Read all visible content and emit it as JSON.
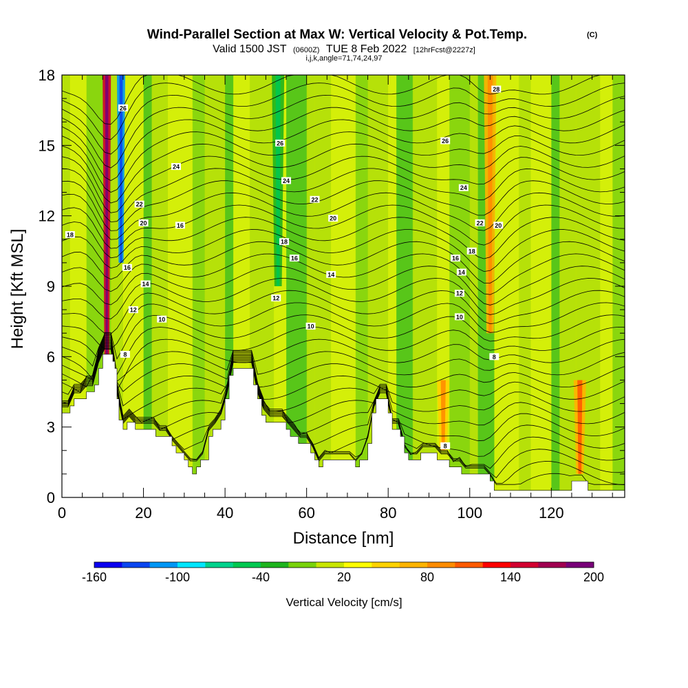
{
  "chart_data": {
    "type": "heatmap",
    "title": "Wind-Parallel Section at Max W: Vertical Velocity & Pot.Temp.",
    "title_mark": "(C)",
    "subtitle": {
      "valid": "Valid 1500 JST",
      "utc": "(0600Z)",
      "date": "TUE 8 Feb 2022",
      "forecast": "[12hrFcst@2227z]"
    },
    "indices": "i,j,k,angle=71,74,24,97",
    "xlabel": "Distance [nm]",
    "ylabel": "Height [Kft MSL]",
    "xlim": [
      0,
      138
    ],
    "ylim": [
      0,
      18
    ],
    "x_ticks": [
      0,
      20,
      40,
      60,
      80,
      100,
      120
    ],
    "y_ticks": [
      0,
      3,
      6,
      9,
      12,
      15,
      18
    ],
    "colorbar": {
      "label": "Vertical Velocity [cm/s]",
      "tick_labels": [
        "-160",
        "-100",
        "-40",
        "20",
        "80",
        "140",
        "200"
      ],
      "colors": [
        "#0a00f0",
        "#0a46f0",
        "#0096f5",
        "#00e6ff",
        "#00d28c",
        "#00c850",
        "#1eb41e",
        "#78d20a",
        "#c8e600",
        "#ffff00",
        "#ffd200",
        "#ffb400",
        "#ff8c00",
        "#ff5a00",
        "#ff0000",
        "#d20030",
        "#a00050",
        "#780078"
      ]
    },
    "vertical_velocity_features": [
      {
        "x": 11,
        "z_min": 6,
        "z_max": 18,
        "w": 150
      },
      {
        "x": 14.5,
        "z_min": 10,
        "z_max": 18,
        "w": -110
      },
      {
        "x": 105,
        "z_min": 7,
        "z_max": 18,
        "w": 60
      },
      {
        "x": 53,
        "z_min": 9,
        "z_max": 18,
        "w": -30
      },
      {
        "x": 127,
        "z_min": 1,
        "z_max": 5,
        "w": 70
      },
      {
        "x": 93.5,
        "z_min": 2,
        "z_max": 5,
        "w": 50
      }
    ],
    "terrain": [
      [
        0,
        3.6
      ],
      [
        1,
        3.6
      ],
      [
        2,
        3.9
      ],
      [
        3,
        4.2
      ],
      [
        5,
        4.2
      ],
      [
        6,
        4.5
      ],
      [
        8,
        4.8
      ],
      [
        9,
        5.5
      ],
      [
        10,
        6.1
      ],
      [
        12,
        6.1
      ],
      [
        12.5,
        5.8
      ],
      [
        13,
        5.5
      ],
      [
        13.5,
        4.2
      ],
      [
        14,
        3.3
      ],
      [
        15,
        2.9
      ],
      [
        16,
        3.2
      ],
      [
        17,
        3.2
      ],
      [
        18,
        2.9
      ],
      [
        22,
        2.9
      ],
      [
        23,
        2.6
      ],
      [
        26,
        2.6
      ],
      [
        27,
        2.2
      ],
      [
        28,
        1.9
      ],
      [
        30,
        1.6
      ],
      [
        31,
        1.3
      ],
      [
        32,
        1.0
      ],
      [
        33,
        1.3
      ],
      [
        34,
        1.6
      ],
      [
        36,
        2.6
      ],
      [
        37,
        2.9
      ],
      [
        39,
        3.3
      ],
      [
        40,
        4.2
      ],
      [
        41,
        5.2
      ],
      [
        42,
        5.5
      ],
      [
        46,
        5.5
      ],
      [
        47,
        4.8
      ],
      [
        48,
        4.2
      ],
      [
        49,
        3.5
      ],
      [
        50,
        3.2
      ],
      [
        51,
        3.2
      ],
      [
        54,
        3.2
      ],
      [
        55,
        2.9
      ],
      [
        56,
        2.6
      ],
      [
        58,
        2.3
      ],
      [
        59,
        2.3
      ],
      [
        61,
        1.9
      ],
      [
        62,
        1.6
      ],
      [
        63,
        1.3
      ],
      [
        64,
        1.6
      ],
      [
        65,
        1.6
      ],
      [
        71,
        1.6
      ],
      [
        72,
        1.3
      ],
      [
        73,
        1.6
      ],
      [
        75,
        2.3
      ],
      [
        76,
        3.6
      ],
      [
        77,
        4.2
      ],
      [
        79,
        4.2
      ],
      [
        80,
        3.6
      ],
      [
        81,
        2.9
      ],
      [
        82,
        2.9
      ],
      [
        83,
        2.6
      ],
      [
        84,
        1.9
      ],
      [
        85,
        1.6
      ],
      [
        87,
        1.6
      ],
      [
        88,
        1.9
      ],
      [
        91,
        1.9
      ],
      [
        92,
        1.6
      ],
      [
        94,
        1.6
      ],
      [
        95,
        1.3
      ],
      [
        97,
        1.3
      ],
      [
        98,
        1.0
      ],
      [
        104,
        1.0
      ],
      [
        105,
        0.7
      ],
      [
        106,
        0.3
      ],
      [
        124,
        0.3
      ],
      [
        125,
        0.7
      ],
      [
        128,
        0.7
      ],
      [
        129,
        0.3
      ],
      [
        138,
        0.3
      ]
    ],
    "isentrope_labels": [
      {
        "text": "26",
        "x": 15,
        "z": 16.6
      },
      {
        "text": "24",
        "x": 28,
        "z": 14.1
      },
      {
        "text": "22",
        "x": 19,
        "z": 12.5
      },
      {
        "text": "20",
        "x": 20,
        "z": 11.7
      },
      {
        "text": "16",
        "x": 29,
        "z": 11.6
      },
      {
        "text": "18",
        "x": 2,
        "z": 11.2
      },
      {
        "text": "16",
        "x": 16,
        "z": 9.8
      },
      {
        "text": "14",
        "x": 20.5,
        "z": 9.1
      },
      {
        "text": "12",
        "x": 17.5,
        "z": 8.0
      },
      {
        "text": "10",
        "x": 24.5,
        "z": 7.6
      },
      {
        "text": "8",
        "x": 15.5,
        "z": 6.1
      },
      {
        "text": "26",
        "x": 53.5,
        "z": 15.1
      },
      {
        "text": "24",
        "x": 55,
        "z": 13.5
      },
      {
        "text": "22",
        "x": 62,
        "z": 12.7
      },
      {
        "text": "20",
        "x": 66.5,
        "z": 11.9
      },
      {
        "text": "18",
        "x": 54.5,
        "z": 10.9
      },
      {
        "text": "16",
        "x": 57,
        "z": 10.2
      },
      {
        "text": "14",
        "x": 66,
        "z": 9.5
      },
      {
        "text": "12",
        "x": 52.5,
        "z": 8.5
      },
      {
        "text": "10",
        "x": 61,
        "z": 7.3
      },
      {
        "text": "26",
        "x": 94,
        "z": 15.2
      },
      {
        "text": "28",
        "x": 106.5,
        "z": 17.4
      },
      {
        "text": "24",
        "x": 98.5,
        "z": 13.2
      },
      {
        "text": "22",
        "x": 102.5,
        "z": 11.7
      },
      {
        "text": "20",
        "x": 107,
        "z": 11.6
      },
      {
        "text": "18",
        "x": 100.5,
        "z": 10.5
      },
      {
        "text": "16",
        "x": 96.5,
        "z": 10.2
      },
      {
        "text": "14",
        "x": 98,
        "z": 9.6
      },
      {
        "text": "12",
        "x": 97.5,
        "z": 8.7
      },
      {
        "text": "10",
        "x": 97.5,
        "z": 7.7
      },
      {
        "text": "8",
        "x": 106,
        "z": 6.0
      },
      {
        "text": "8",
        "x": 94,
        "z": 2.2
      }
    ]
  }
}
